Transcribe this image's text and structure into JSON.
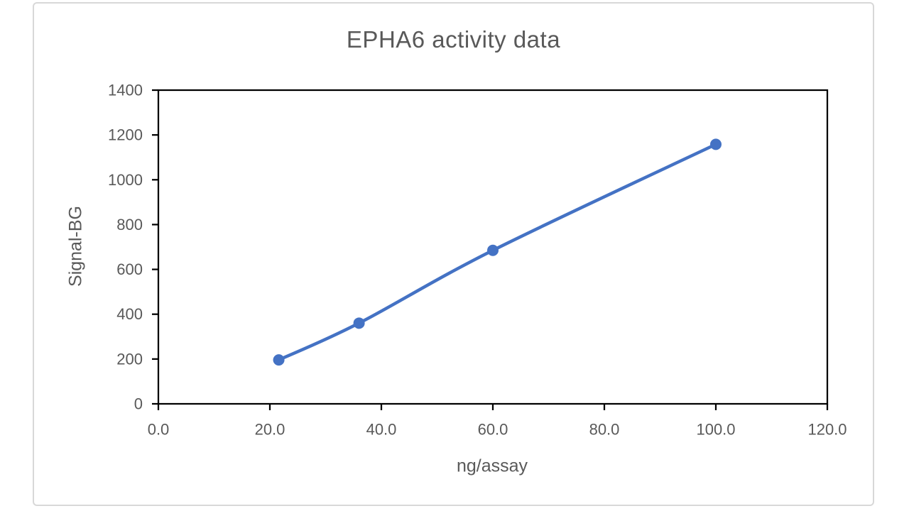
{
  "window": {
    "background_color": "#ffffff",
    "frame_border_color": "#d8d8d8"
  },
  "chart_data": {
    "type": "line",
    "title": "EPHA6 activity data",
    "xlabel": "ng/assay",
    "ylabel": "Signal-BG",
    "series": [
      {
        "name": "Signal-BG",
        "x": [
          21.6,
          36.0,
          60.0,
          100.0
        ],
        "y": [
          196,
          360,
          685,
          1158
        ]
      }
    ],
    "xlim": [
      0,
      120
    ],
    "ylim": [
      0,
      1400
    ],
    "x_ticks": {
      "values": [
        0,
        20,
        40,
        60,
        80,
        100,
        120
      ],
      "labels": [
        "0.0",
        "20.0",
        "40.0",
        "60.0",
        "80.0",
        "100.0",
        "120.0"
      ]
    },
    "y_ticks": {
      "values": [
        0,
        200,
        400,
        600,
        800,
        1000,
        1200,
        1400
      ],
      "labels": [
        "0",
        "200",
        "400",
        "600",
        "800",
        "1000",
        "1200",
        "1400"
      ]
    },
    "grid": false,
    "legend": false,
    "smooth": true,
    "marker": "circle",
    "line_color": "#4472C4",
    "text_color": "#595959",
    "axis_color": "#000000"
  }
}
